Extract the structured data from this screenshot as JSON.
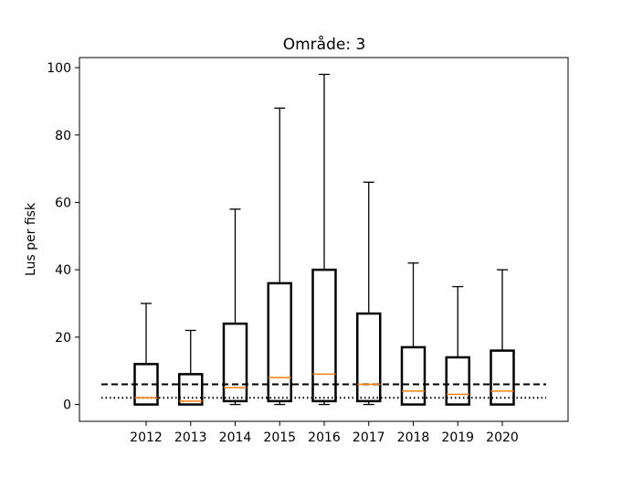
{
  "chart_data": {
    "type": "box",
    "title": "Område: 3",
    "xlabel": "",
    "ylabel": "Lus per fisk",
    "ylim": [
      -5,
      103
    ],
    "yticks": [
      0,
      20,
      40,
      60,
      80,
      100
    ],
    "categories": [
      "2012",
      "2013",
      "2014",
      "2015",
      "2016",
      "2017",
      "2018",
      "2019",
      "2020"
    ],
    "boxes": [
      {
        "label": "2012",
        "whislo": 0,
        "q1": 0,
        "med": 2,
        "q3": 12,
        "whishi": 30
      },
      {
        "label": "2013",
        "whislo": 0,
        "q1": 0,
        "med": 1,
        "q3": 9,
        "whishi": 22
      },
      {
        "label": "2014",
        "whislo": 0,
        "q1": 1,
        "med": 5,
        "q3": 24,
        "whishi": 58
      },
      {
        "label": "2015",
        "whislo": 0,
        "q1": 1,
        "med": 8,
        "q3": 36,
        "whishi": 88
      },
      {
        "label": "2016",
        "whislo": 0,
        "q1": 1,
        "med": 9,
        "q3": 40,
        "whishi": 98
      },
      {
        "label": "2017",
        "whislo": 0,
        "q1": 1,
        "med": 6,
        "q3": 27,
        "whishi": 66
      },
      {
        "label": "2018",
        "whislo": 0,
        "q1": 0,
        "med": 4,
        "q3": 17,
        "whishi": 42
      },
      {
        "label": "2019",
        "whislo": 0,
        "q1": 0,
        "med": 3,
        "q3": 14,
        "whishi": 35
      },
      {
        "label": "2020",
        "whislo": 0,
        "q1": 0,
        "med": 4,
        "q3": 16,
        "whishi": 40
      }
    ],
    "reference_lines": [
      {
        "style": "dashed",
        "y": 6
      },
      {
        "style": "dotted",
        "y": 2
      }
    ],
    "colors": {
      "box": "#000000",
      "median": "#ff7f0e",
      "reference": "#000000"
    },
    "grid": false
  }
}
